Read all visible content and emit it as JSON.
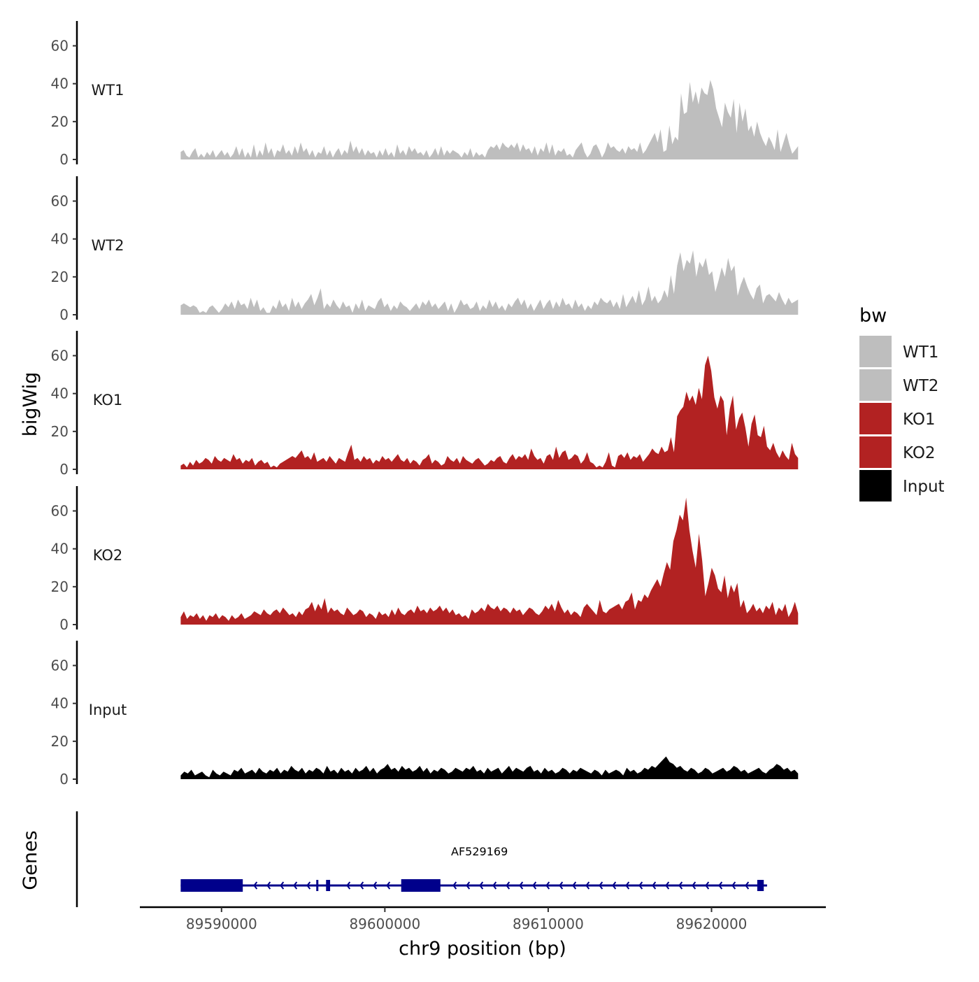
{
  "chart_data": {
    "type": "area",
    "chromosome": "chr9",
    "xlabel": "chr9 position (bp)",
    "ylabel_tracks": "bigWig",
    "ylabel_genes": "Genes",
    "x_range": [
      89585000,
      89627000
    ],
    "data_range": [
      89587500,
      89625300
    ],
    "x_ticks": [
      "89590000",
      "89600000",
      "89610000",
      "89620000"
    ],
    "y_range": [
      0,
      72
    ],
    "y_ticks": [
      "0",
      "20",
      "40",
      "60"
    ],
    "legend": {
      "title": "bw",
      "entries": [
        {
          "label": "WT1",
          "color": "#bebebe"
        },
        {
          "label": "WT2",
          "color": "#bebebe"
        },
        {
          "label": "KO1",
          "color": "#b22222"
        },
        {
          "label": "KO2",
          "color": "#b22222"
        },
        {
          "label": "Input",
          "color": "#000000"
        }
      ]
    },
    "series": [
      {
        "name": "WT1",
        "color": "#bebebe",
        "values": [
          4,
          5,
          2,
          1,
          4,
          6,
          1,
          3,
          1,
          4,
          2,
          5,
          1,
          3,
          5,
          2,
          4,
          1,
          3,
          7,
          2,
          6,
          1,
          4,
          1,
          8,
          1,
          5,
          2,
          9,
          3,
          6,
          1,
          5,
          4,
          8,
          3,
          5,
          2,
          7,
          3,
          9,
          4,
          6,
          2,
          5,
          1,
          4,
          3,
          7,
          2,
          5,
          1,
          4,
          6,
          2,
          5,
          3,
          10,
          4,
          7,
          3,
          6,
          2,
          5,
          3,
          4,
          1,
          5,
          2,
          6,
          2,
          4,
          1,
          8,
          3,
          5,
          2,
          7,
          4,
          6,
          3,
          4,
          2,
          5,
          1,
          3,
          6,
          2,
          7,
          2,
          5,
          3,
          5,
          4,
          3,
          1,
          4,
          2,
          6,
          1,
          4,
          2,
          3,
          1,
          5,
          7,
          6,
          8,
          5,
          9,
          7,
          6,
          8,
          6,
          9,
          4,
          8,
          5,
          6,
          3,
          7,
          2,
          6,
          4,
          9,
          3,
          8,
          2,
          5,
          4,
          6,
          2,
          3,
          1,
          5,
          7,
          9,
          4,
          1,
          3,
          7,
          8,
          5,
          1,
          4,
          9,
          6,
          7,
          5,
          4,
          6,
          3,
          7,
          5,
          6,
          4,
          9,
          3,
          5,
          8,
          11,
          14,
          9,
          16,
          4,
          5,
          18,
          8,
          12,
          10,
          35,
          24,
          25,
          41,
          30,
          36,
          29,
          38,
          35,
          34,
          42,
          37,
          27,
          22,
          17,
          30,
          25,
          22,
          32,
          14,
          30,
          20,
          27,
          15,
          18,
          12,
          20,
          14,
          10,
          7,
          12,
          9,
          5,
          16,
          4,
          9,
          14,
          8,
          3,
          5,
          7
        ]
      },
      {
        "name": "WT2",
        "color": "#bebebe",
        "values": [
          5,
          6,
          5,
          4,
          5,
          4,
          1,
          2,
          1,
          4,
          5,
          3,
          1,
          3,
          6,
          4,
          7,
          3,
          8,
          5,
          6,
          3,
          9,
          4,
          8,
          2,
          4,
          1,
          1,
          5,
          3,
          8,
          4,
          6,
          2,
          9,
          4,
          7,
          3,
          6,
          8,
          11,
          5,
          9,
          14,
          3,
          6,
          4,
          8,
          5,
          3,
          7,
          4,
          5,
          1,
          6,
          3,
          8,
          2,
          5,
          4,
          3,
          7,
          9,
          4,
          6,
          2,
          5,
          3,
          7,
          5,
          4,
          2,
          4,
          6,
          3,
          7,
          5,
          8,
          4,
          6,
          3,
          5,
          7,
          2,
          6,
          1,
          4,
          8,
          5,
          6,
          3,
          4,
          7,
          2,
          5,
          3,
          8,
          4,
          7,
          3,
          5,
          2,
          6,
          4,
          7,
          9,
          5,
          8,
          3,
          6,
          2,
          5,
          8,
          3,
          6,
          8,
          3,
          7,
          4,
          9,
          5,
          6,
          3,
          8,
          4,
          6,
          2,
          5,
          3,
          7,
          5,
          9,
          7,
          6,
          8,
          4,
          7,
          3,
          11,
          4,
          7,
          10,
          6,
          13,
          5,
          8,
          15,
          7,
          10,
          6,
          8,
          13,
          9,
          21,
          11,
          26,
          33,
          23,
          29,
          27,
          34,
          20,
          28,
          25,
          30,
          21,
          23,
          12,
          18,
          25,
          20,
          30,
          23,
          26,
          10,
          16,
          20,
          15,
          11,
          8,
          14,
          16,
          6,
          10,
          11,
          9,
          7,
          12,
          8,
          5,
          9,
          6,
          7,
          8
        ]
      },
      {
        "name": "KO1",
        "color": "#b22222",
        "values": [
          2,
          3,
          1,
          4,
          2,
          5,
          3,
          4,
          6,
          5,
          3,
          7,
          5,
          4,
          6,
          5,
          4,
          8,
          5,
          6,
          3,
          5,
          4,
          6,
          2,
          4,
          5,
          3,
          4,
          1,
          2,
          1,
          3,
          4,
          5,
          6,
          7,
          6,
          8,
          10,
          6,
          7,
          5,
          9,
          4,
          5,
          6,
          4,
          7,
          5,
          3,
          6,
          5,
          4,
          9,
          13,
          5,
          6,
          4,
          7,
          5,
          6,
          3,
          5,
          4,
          7,
          5,
          6,
          4,
          6,
          8,
          5,
          4,
          6,
          3,
          5,
          4,
          2,
          5,
          6,
          8,
          3,
          5,
          4,
          2,
          3,
          7,
          5,
          4,
          6,
          3,
          7,
          5,
          4,
          3,
          5,
          6,
          4,
          2,
          3,
          5,
          4,
          6,
          7,
          4,
          3,
          6,
          8,
          5,
          7,
          6,
          8,
          5,
          11,
          7,
          5,
          6,
          3,
          7,
          8,
          5,
          12,
          6,
          9,
          10,
          5,
          6,
          8,
          7,
          3,
          5,
          9,
          4,
          3,
          1,
          2,
          1,
          4,
          9,
          2,
          1,
          7,
          8,
          6,
          9,
          5,
          7,
          6,
          8,
          4,
          6,
          8,
          11,
          9,
          8,
          12,
          9,
          10,
          17,
          9,
          28,
          31,
          33,
          41,
          36,
          39,
          34,
          43,
          37,
          55,
          60,
          52,
          38,
          32,
          39,
          36,
          18,
          32,
          39,
          21,
          27,
          30,
          22,
          12,
          24,
          29,
          18,
          17,
          23,
          12,
          10,
          14,
          9,
          6,
          10,
          7,
          5,
          14,
          8,
          6
        ]
      },
      {
        "name": "KO2",
        "color": "#b22222",
        "values": [
          4,
          7,
          3,
          5,
          4,
          6,
          3,
          5,
          2,
          5,
          4,
          6,
          3,
          5,
          4,
          2,
          5,
          3,
          4,
          6,
          3,
          4,
          5,
          7,
          6,
          5,
          8,
          6,
          5,
          7,
          8,
          6,
          9,
          7,
          5,
          6,
          4,
          7,
          5,
          8,
          9,
          12,
          7,
          11,
          8,
          14,
          6,
          9,
          7,
          8,
          6,
          5,
          9,
          7,
          5,
          6,
          8,
          7,
          4,
          6,
          5,
          3,
          7,
          5,
          6,
          4,
          8,
          5,
          9,
          6,
          5,
          7,
          8,
          6,
          10,
          7,
          8,
          6,
          9,
          7,
          8,
          10,
          7,
          9,
          6,
          8,
          5,
          6,
          4,
          5,
          3,
          8,
          6,
          7,
          9,
          7,
          11,
          9,
          8,
          10,
          7,
          9,
          8,
          6,
          9,
          7,
          8,
          5,
          7,
          9,
          8,
          6,
          5,
          7,
          10,
          8,
          11,
          7,
          13,
          9,
          6,
          8,
          5,
          7,
          6,
          4,
          9,
          11,
          9,
          7,
          5,
          13,
          7,
          6,
          8,
          9,
          10,
          11,
          8,
          12,
          13,
          17,
          8,
          13,
          12,
          16,
          14,
          18,
          21,
          24,
          20,
          27,
          33,
          29,
          44,
          50,
          58,
          55,
          67,
          50,
          39,
          30,
          48,
          34,
          15,
          22,
          30,
          26,
          19,
          17,
          26,
          14,
          21,
          17,
          22,
          9,
          13,
          6,
          8,
          11,
          7,
          9,
          6,
          10,
          8,
          12,
          5,
          9,
          7,
          11,
          4,
          7,
          12,
          6
        ]
      },
      {
        "name": "Input",
        "color": "#000000",
        "values": [
          2,
          4,
          3,
          5,
          2,
          3,
          4,
          2,
          1,
          5,
          3,
          2,
          4,
          3,
          2,
          5,
          4,
          6,
          3,
          4,
          5,
          3,
          6,
          4,
          3,
          5,
          4,
          6,
          3,
          5,
          4,
          7,
          5,
          4,
          6,
          3,
          5,
          4,
          6,
          5,
          3,
          7,
          4,
          5,
          3,
          6,
          4,
          5,
          3,
          6,
          4,
          5,
          7,
          4,
          6,
          3,
          5,
          6,
          8,
          5,
          6,
          4,
          7,
          5,
          6,
          4,
          5,
          7,
          4,
          6,
          3,
          5,
          4,
          6,
          5,
          3,
          4,
          6,
          5,
          4,
          6,
          5,
          7,
          4,
          5,
          3,
          6,
          4,
          5,
          6,
          3,
          5,
          7,
          4,
          6,
          5,
          4,
          6,
          7,
          4,
          5,
          3,
          6,
          4,
          5,
          3,
          4,
          6,
          5,
          3,
          5,
          4,
          6,
          5,
          4,
          3,
          5,
          4,
          2,
          5,
          3,
          4,
          5,
          4,
          2,
          6,
          4,
          5,
          3,
          4,
          6,
          5,
          7,
          6,
          8,
          10,
          12,
          9,
          8,
          6,
          7,
          5,
          4,
          6,
          5,
          3,
          4,
          6,
          5,
          3,
          4,
          5,
          6,
          4,
          5,
          7,
          6,
          4,
          5,
          3,
          4,
          5,
          6,
          4,
          3,
          5,
          6,
          8,
          7,
          5,
          6,
          4,
          5,
          3
        ]
      }
    ],
    "gene": {
      "name": "AF529169",
      "start": 89587500,
      "end": 89623400,
      "strand": "-",
      "exons": [
        {
          "start": 89587500,
          "end": 89591300,
          "kind": "thick"
        },
        {
          "start": 89595800,
          "end": 89595850,
          "kind": "thin"
        },
        {
          "start": 89596400,
          "end": 89596650,
          "kind": "thin"
        },
        {
          "start": 89601000,
          "end": 89603400,
          "kind": "thick"
        },
        {
          "start": 89622800,
          "end": 89623200,
          "kind": "thin"
        }
      ]
    }
  }
}
